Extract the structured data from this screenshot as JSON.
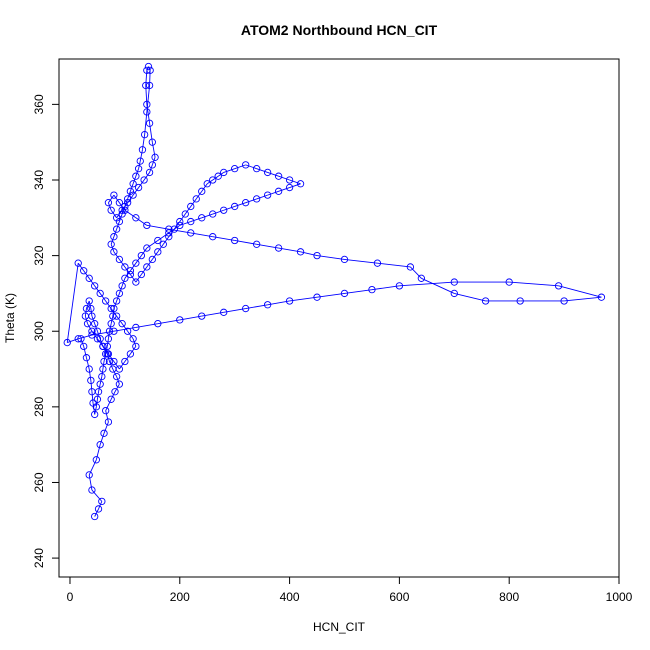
{
  "chart_data": {
    "type": "scatter",
    "title": "ATOM2 Northbound HCN_CIT",
    "xlabel": "HCN_CIT",
    "ylabel": "Theta (K)",
    "xlim": [
      -20,
      1000
    ],
    "ylim": [
      235,
      372
    ],
    "xticks": [
      0,
      200,
      400,
      600,
      800,
      1000
    ],
    "yticks": [
      240,
      260,
      280,
      300,
      320,
      340,
      360
    ],
    "grid": false,
    "legend": "none",
    "series_color": "#0000ff",
    "connected": true,
    "markers": "open-circle",
    "x": [
      45,
      52,
      58,
      40,
      35,
      48,
      55,
      62,
      70,
      65,
      75,
      82,
      90,
      85,
      78,
      72,
      68,
      60,
      55,
      50,
      45,
      40,
      38,
      35,
      30,
      28,
      32,
      40,
      50,
      60,
      70,
      80,
      90,
      100,
      110,
      120,
      115,
      105,
      95,
      85,
      75,
      65,
      55,
      45,
      35,
      25,
      15,
      -5,
      15,
      40,
      80,
      120,
      160,
      200,
      240,
      280,
      320,
      360,
      400,
      450,
      500,
      550,
      600,
      700,
      800,
      890,
      968,
      900,
      820,
      757,
      700,
      640,
      620,
      560,
      500,
      450,
      420,
      380,
      340,
      300,
      260,
      220,
      180,
      140,
      120,
      100,
      90,
      80,
      70,
      75,
      85,
      95,
      105,
      115,
      125,
      135,
      145,
      150,
      155,
      150,
      145,
      140,
      138,
      140,
      143,
      146,
      145,
      140,
      136,
      132,
      128,
      125,
      120,
      115,
      110,
      105,
      100,
      95,
      90,
      85,
      80,
      75,
      80,
      90,
      100,
      110,
      120,
      130,
      140,
      150,
      160,
      170,
      180,
      190,
      200,
      210,
      220,
      230,
      240,
      250,
      260,
      270,
      280,
      300,
      320,
      340,
      360,
      380,
      400,
      420,
      400,
      380,
      360,
      340,
      320,
      300,
      280,
      260,
      240,
      220,
      200,
      180,
      160,
      140,
      130,
      120,
      110,
      100,
      95,
      90,
      85,
      80,
      78,
      75,
      72,
      70,
      68,
      65,
      62,
      60,
      58,
      55,
      52,
      50,
      48,
      45,
      42,
      40,
      38,
      35,
      30,
      25,
      20
    ],
    "y": [
      251,
      253,
      255,
      258,
      262,
      266,
      270,
      273,
      276,
      279,
      282,
      284,
      286,
      288,
      290,
      292,
      294,
      296,
      298,
      300,
      302,
      304,
      306,
      308,
      306,
      304,
      302,
      300,
      298,
      296,
      294,
      292,
      290,
      292,
      294,
      296,
      298,
      300,
      302,
      304,
      306,
      308,
      310,
      312,
      314,
      316,
      318,
      297,
      298,
      299,
      300,
      301,
      302,
      303,
      304,
      305,
      306,
      307,
      308,
      309,
      310,
      311,
      312,
      313,
      313,
      312,
      309,
      308,
      308,
      308,
      310,
      314,
      317,
      318,
      319,
      320,
      321,
      322,
      323,
      324,
      325,
      326,
      327,
      328,
      330,
      332,
      334,
      336,
      334,
      332,
      330,
      332,
      334,
      336,
      338,
      340,
      342,
      344,
      346,
      350,
      355,
      360,
      365,
      369,
      370,
      369,
      365,
      358,
      352,
      348,
      345,
      343,
      341,
      339,
      337,
      335,
      333,
      331,
      329,
      327,
      325,
      323,
      321,
      319,
      317,
      315,
      313,
      315,
      317,
      319,
      321,
      323,
      325,
      327,
      329,
      331,
      333,
      335,
      337,
      339,
      340,
      341,
      342,
      343,
      344,
      343,
      342,
      341,
      340,
      339,
      338,
      337,
      336,
      335,
      334,
      333,
      332,
      331,
      330,
      329,
      328,
      326,
      324,
      322,
      320,
      318,
      316,
      314,
      312,
      310,
      308,
      306,
      304,
      302,
      300,
      298,
      296,
      294,
      292,
      290,
      288,
      286,
      284,
      282,
      280,
      278,
      281,
      284,
      287,
      290,
      293,
      296,
      298
    ]
  }
}
